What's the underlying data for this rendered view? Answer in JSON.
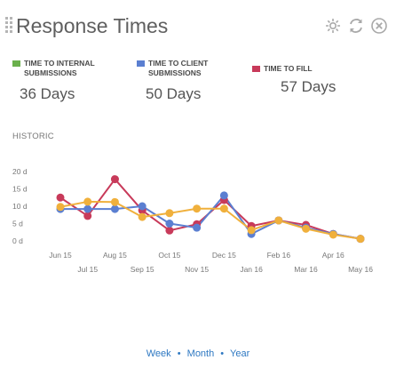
{
  "header": {
    "title": "Response Times",
    "icons": [
      "settings-icon",
      "refresh-icon",
      "close-icon"
    ]
  },
  "stats": [
    {
      "label_line1": "TIME TO INTERNAL",
      "label_line2": "SUBMISSIONS",
      "value": "36 Days",
      "color": "#6ab04c"
    },
    {
      "label_line1": "TIME TO CLIENT",
      "label_line2": "SUBMISSIONS",
      "value": "50 Days",
      "color": "#5b7fd1"
    },
    {
      "label_line1": "TIME TO FILL",
      "label_line2": "",
      "value": "57 Days",
      "color": "#c83a5a"
    }
  ],
  "section_label": "HISTORIC",
  "chart_data": {
    "type": "line",
    "x": [
      "Jun 15",
      "Jul 15",
      "Aug 15",
      "Sep 15",
      "Oct 15",
      "Nov 15",
      "Dec 15",
      "Jan 16",
      "Feb 16",
      "Mar 16",
      "Apr 16",
      "May 16"
    ],
    "x_tick_row1": [
      "Jun 15",
      "Aug 15",
      "Oct 15",
      "Dec 15",
      "Feb 16",
      "Apr 16"
    ],
    "x_tick_row2": [
      "Jul 15",
      "Sep 15",
      "Nov 15",
      "Jan 16",
      "Mar 16",
      "May 16"
    ],
    "y_ticks": [
      "0 d",
      "5 d",
      "10 d",
      "15 d",
      "20 d"
    ],
    "ylim": [
      0,
      20
    ],
    "series": [
      {
        "color": "#c83a5a",
        "values": [
          12.5,
          7.2,
          17.8,
          8.8,
          3.0,
          4.8,
          11.8,
          4.3,
          5.9,
          4.6,
          2.0,
          0.6
        ]
      },
      {
        "color": "#5b7fd1",
        "values": [
          9.2,
          9.2,
          9.2,
          10.0,
          5.0,
          3.8,
          13.1,
          2.0,
          5.9,
          3.8,
          2.0,
          0.6
        ]
      },
      {
        "color": "#f0b03c",
        "values": [
          9.8,
          11.3,
          11.2,
          6.9,
          8.0,
          9.3,
          9.3,
          3.1,
          5.9,
          3.5,
          1.8,
          0.6
        ]
      }
    ]
  },
  "footer": {
    "week": "Week",
    "month": "Month",
    "year": "Year",
    "separator": "•"
  }
}
